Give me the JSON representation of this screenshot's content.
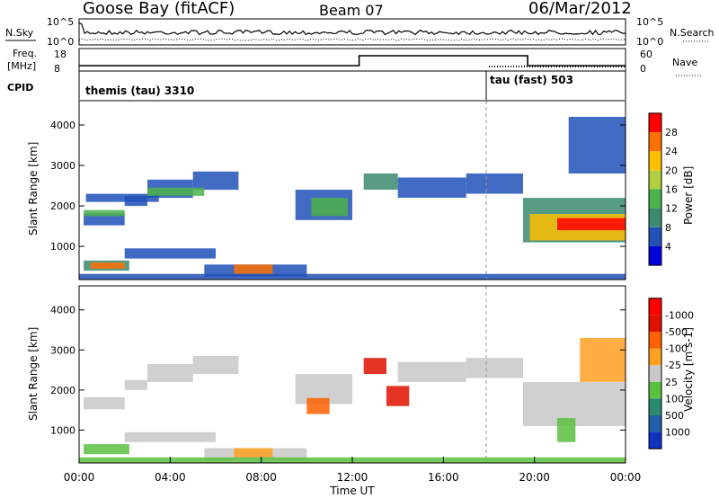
{
  "header": {
    "station": "Goose Bay (fitACF)",
    "beam": "Beam 07",
    "date": "06/Mar/2012"
  },
  "nsky_panel": {
    "left_label": "N.Sky",
    "right_label": "N.Search",
    "left_ticks": [
      "10^5",
      "10^0"
    ],
    "right_ticks": [
      "10^5",
      "10^0"
    ]
  },
  "freq_panel": {
    "left_label_line1": "Freq.",
    "left_label_line2": "[MHz]",
    "right_label": "Nave",
    "left_ticks": [
      "18",
      "8"
    ],
    "right_ticks": [
      "60",
      "0"
    ]
  },
  "cpid_panel": {
    "label": "CPID",
    "program1": "themis (tau) 3310",
    "program2": "tau (fast) 503"
  },
  "time_axis": {
    "label": "Time UT",
    "ticks": [
      "00:00",
      "04:00",
      "08:00",
      "12:00",
      "16:00",
      "20:00",
      "00:00"
    ]
  },
  "chart_data": [
    {
      "type": "heatmap",
      "title": "",
      "xlabel": "",
      "ylabel": "Slant Range [km]",
      "xlim_hours": [
        0,
        24
      ],
      "ylim_km": [
        180,
        4600
      ],
      "yticks": [
        "1000",
        "2000",
        "3000",
        "4000"
      ],
      "colorbar": {
        "label": "Power [dB]",
        "tick_labels": [
          "4",
          "8",
          "12",
          "16",
          "20",
          "24",
          "28"
        ],
        "colors": [
          "#0000dd",
          "#2050b8",
          "#3a8a6e",
          "#4cb24a",
          "#b0d040",
          "#ffc000",
          "#ff7000",
          "#ff0000"
        ]
      },
      "regions": [
        {
          "t": [
            0.2,
            2.0
          ],
          "r": [
            1520,
            1820
          ],
          "level": 1
        },
        {
          "t": [
            2.0,
            3.0
          ],
          "r": [
            2000,
            2250
          ],
          "level": 1
        },
        {
          "t": [
            3.0,
            5.0
          ],
          "r": [
            2200,
            2650
          ],
          "level": 1
        },
        {
          "t": [
            5.0,
            7.0
          ],
          "r": [
            2400,
            2850
          ],
          "level": 1
        },
        {
          "t": [
            0.3,
            3.5
          ],
          "r": [
            2100,
            2300
          ],
          "level": 1
        },
        {
          "t": [
            0.2,
            2.0
          ],
          "r": [
            1750,
            1900
          ],
          "level": 3
        },
        {
          "t": [
            3.0,
            5.5
          ],
          "r": [
            2250,
            2450
          ],
          "level": 3
        },
        {
          "t": [
            2.0,
            6.0
          ],
          "r": [
            700,
            950
          ],
          "level": 1
        },
        {
          "t": [
            0.2,
            2.2
          ],
          "r": [
            400,
            650
          ],
          "level": 2
        },
        {
          "t": [
            0.5,
            2.0
          ],
          "r": [
            450,
            600
          ],
          "level": 6
        },
        {
          "t": [
            5.5,
            10.0
          ],
          "r": [
            250,
            550
          ],
          "level": 1
        },
        {
          "t": [
            6.8,
            8.5
          ],
          "r": [
            320,
            550
          ],
          "level": 6
        },
        {
          "t": [
            9.5,
            12.0
          ],
          "r": [
            1650,
            2400
          ],
          "level": 1
        },
        {
          "t": [
            10.2,
            11.8
          ],
          "r": [
            1750,
            2200
          ],
          "level": 3
        },
        {
          "t": [
            12.5,
            14.0
          ],
          "r": [
            2400,
            2800
          ],
          "level": 2
        },
        {
          "t": [
            14.0,
            17.0
          ],
          "r": [
            2200,
            2700
          ],
          "level": 1
        },
        {
          "t": [
            17.0,
            19.5
          ],
          "r": [
            2300,
            2800
          ],
          "level": 1
        },
        {
          "t": [
            19.5,
            24.0
          ],
          "r": [
            1100,
            2200
          ],
          "level": 2
        },
        {
          "t": [
            19.8,
            24.0
          ],
          "r": [
            1150,
            1800
          ],
          "level": 5
        },
        {
          "t": [
            21.0,
            24.0
          ],
          "r": [
            1400,
            1700
          ],
          "level": 7
        },
        {
          "t": [
            21.5,
            24.0
          ],
          "r": [
            2800,
            4200
          ],
          "level": 1
        },
        {
          "t": [
            0.0,
            24.0
          ],
          "r": [
            190,
            320
          ],
          "level": 1
        }
      ]
    },
    {
      "type": "heatmap",
      "title": "",
      "xlabel": "Time UT",
      "ylabel": "Slant Range [km]",
      "xlim_hours": [
        0,
        24
      ],
      "ylim_km": [
        180,
        4600
      ],
      "yticks": [
        "1000",
        "2000",
        "3000",
        "4000"
      ],
      "colorbar": {
        "label": "Velocity [m s-1]",
        "tick_labels": [
          "1000",
          "500",
          "100",
          "25",
          "-25",
          "-100",
          "-500",
          "-1000"
        ],
        "colors": [
          "#1030c0",
          "#2060a8",
          "#2a8a70",
          "#5ac040",
          "#c8c8c8",
          "#ffa020",
          "#ff6000",
          "#e01000",
          "#ff0000"
        ]
      },
      "regions": [
        {
          "t": [
            0.2,
            2.0
          ],
          "r": [
            1520,
            1820
          ],
          "level": 4
        },
        {
          "t": [
            2.0,
            3.0
          ],
          "r": [
            2000,
            2250
          ],
          "level": 4
        },
        {
          "t": [
            3.0,
            5.0
          ],
          "r": [
            2200,
            2650
          ],
          "level": 4
        },
        {
          "t": [
            5.0,
            7.0
          ],
          "r": [
            2400,
            2850
          ],
          "level": 4
        },
        {
          "t": [
            0.2,
            2.2
          ],
          "r": [
            400,
            650
          ],
          "level": 3
        },
        {
          "t": [
            2.0,
            6.0
          ],
          "r": [
            700,
            950
          ],
          "level": 4
        },
        {
          "t": [
            5.5,
            10.0
          ],
          "r": [
            250,
            550
          ],
          "level": 4
        },
        {
          "t": [
            6.8,
            8.5
          ],
          "r": [
            320,
            550
          ],
          "level": 5
        },
        {
          "t": [
            9.5,
            12.0
          ],
          "r": [
            1650,
            2400
          ],
          "level": 4
        },
        {
          "t": [
            10.0,
            11.0
          ],
          "r": [
            1400,
            1800
          ],
          "level": 6
        },
        {
          "t": [
            12.5,
            13.5
          ],
          "r": [
            2400,
            2800
          ],
          "level": 7
        },
        {
          "t": [
            13.5,
            14.5
          ],
          "r": [
            1600,
            2100
          ],
          "level": 7
        },
        {
          "t": [
            14.0,
            17.0
          ],
          "r": [
            2200,
            2700
          ],
          "level": 4
        },
        {
          "t": [
            17.0,
            19.5
          ],
          "r": [
            2300,
            2800
          ],
          "level": 4
        },
        {
          "t": [
            19.5,
            24.0
          ],
          "r": [
            1100,
            2200
          ],
          "level": 4
        },
        {
          "t": [
            21.0,
            21.8
          ],
          "r": [
            700,
            1300
          ],
          "level": 3
        },
        {
          "t": [
            22.0,
            24.0
          ],
          "r": [
            2200,
            3300
          ],
          "level": 5
        },
        {
          "t": [
            0.0,
            24.0
          ],
          "r": [
            190,
            320
          ],
          "level": 3
        }
      ]
    }
  ]
}
